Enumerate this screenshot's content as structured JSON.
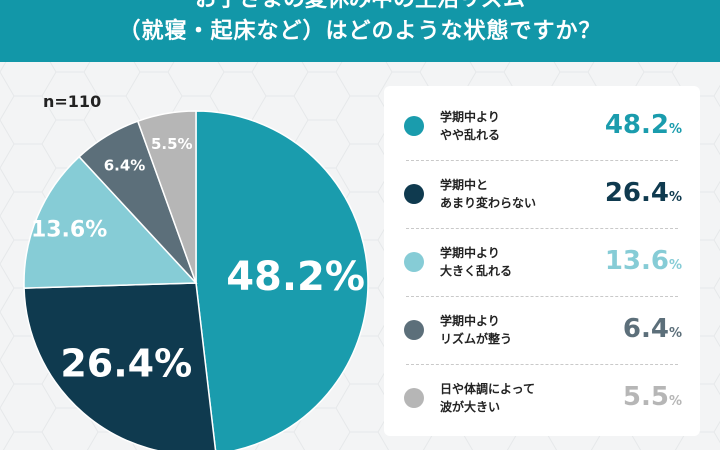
{
  "header": {
    "title_line1": "お子さまの夏休み中の生活リズム",
    "title_line2": "（就寝・起床など）はどのような状態ですか？"
  },
  "sample_size": "n=110",
  "colors": {
    "header_bg": "#1297a8",
    "slices": [
      "#1a9cad",
      "#0f3a4f",
      "#86ccd6",
      "#5c6f7a",
      "#b6b6b6"
    ]
  },
  "chart_data": {
    "type": "pie",
    "title": "お子さまの夏休み中の生活リズム（就寝・起床など）はどのような状態ですか？",
    "categories": [
      "学期中より やや乱れる",
      "学期中と あまり変わらない",
      "学期中より 大きく乱れる",
      "学期中より リズムが整う",
      "日や体調によって 波が大きい"
    ],
    "values": [
      48.2,
      26.4,
      13.6,
      6.4,
      5.5
    ],
    "labels": [
      "48.2%",
      "26.4%",
      "13.6%",
      "6.4%",
      "5.5%"
    ],
    "unit": "%",
    "legend_position": "right"
  },
  "legend": [
    {
      "line1": "学期中より",
      "line2": "やや乱れる",
      "value": "48.2",
      "unit": "%",
      "color": "#1a9cad"
    },
    {
      "line1": "学期中と",
      "line2": "あまり変わらない",
      "value": "26.4",
      "unit": "%",
      "color": "#0f3a4f"
    },
    {
      "line1": "学期中より",
      "line2": "大きく乱れる",
      "value": "13.6",
      "unit": "%",
      "color": "#86ccd6"
    },
    {
      "line1": "学期中より",
      "line2": "リズムが整う",
      "value": "6.4",
      "unit": "%",
      "color": "#5c6f7a"
    },
    {
      "line1": "日や体調によって",
      "line2": "波が大きい",
      "value": "5.5",
      "unit": "%",
      "color": "#b6b6b6"
    }
  ]
}
